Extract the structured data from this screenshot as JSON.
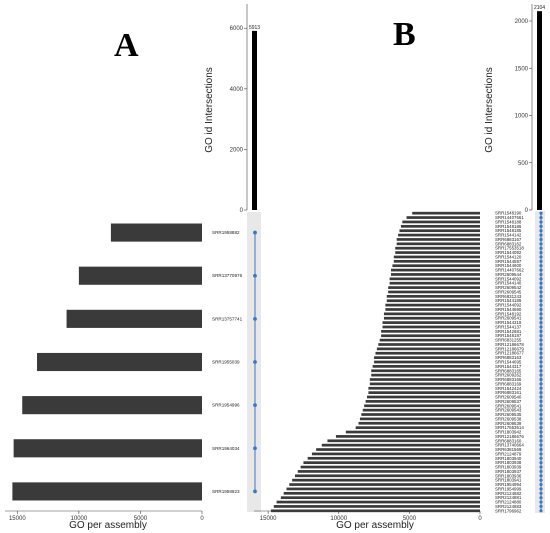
{
  "panels": [
    {
      "letter": "A",
      "ylabel": "GO id Intersections",
      "xlabel": "GO per assembly",
      "intersection_value": 5913,
      "chart_data": {
        "type": "bar",
        "top": {
          "values": [
            5913
          ],
          "ylim": [
            0,
            6800
          ],
          "yticks": [
            0,
            2000,
            4000,
            6000
          ]
        },
        "left": {
          "categories": [
            "SRR1958882",
            "SRR13770976",
            "SRR13757741",
            "SRR1955039",
            "SRR1954996",
            "SRR1964034",
            "SRR1958823"
          ],
          "values": [
            7400,
            10000,
            11000,
            13400,
            14600,
            15300,
            15400
          ],
          "xlim": [
            16000,
            0
          ],
          "xticks": [
            15000,
            10000,
            5000,
            0
          ]
        }
      }
    },
    {
      "letter": "B",
      "ylabel": "GO id Intersections",
      "xlabel": "GO per assembly",
      "intersection_value": 2104,
      "chart_data": {
        "type": "bar",
        "top": {
          "values": [
            2104
          ],
          "ylim": [
            0,
            2180
          ],
          "yticks": [
            0,
            500,
            1000,
            1500,
            2000
          ]
        },
        "left": {
          "categories": [
            "SRR1548190",
            "SRR14407661",
            "SRR1548188",
            "SRR1548186",
            "SRR1548185",
            "SRR1544142",
            "SRR6883167",
            "SRR6883162",
            "SRR17553518",
            "SRR1544092",
            "SRR1544120",
            "SRR1544597",
            "SRR1544600",
            "SRR14407662",
            "SRR2609544",
            "SRR1544092",
            "SRR1544140",
            "SRR2609542",
            "SRR2609545",
            "SRR6831243",
            "SRR1544189",
            "SRR1544092",
            "SRR1544690",
            "SRR1548192",
            "SRR2609541",
            "SRR1544319",
            "SRR1544137",
            "SRR1542681",
            "SRR1548187",
            "SRR6831255",
            "SRR12186678",
            "SRR12186679",
            "SRR12186677",
            "SRR6883163",
            "SRR1544695",
            "SRR1544317",
            "SRR6883165",
            "SRR2609262",
            "SRR6883166",
            "SRR6883169",
            "SRR1542424",
            "SRR6883161",
            "SRR2609540",
            "SRR2609537",
            "SRR2609541",
            "SRR2609543",
            "SRR2609535",
            "SRR2609538",
            "SRR2609539",
            "SRR17553514",
            "SRR1803942",
            "SRR12186676",
            "SRR6883160",
            "SRR13740664",
            "SRR6381569",
            "SRR2124879",
            "SRR1803940",
            "SRR1803938",
            "SRR1803939",
            "SRR1803937",
            "SRR1803936",
            "SRR1803941",
            "SRR1954994",
            "SRR1954999",
            "SRR2124882",
            "SRR2124881",
            "SRR2124880",
            "SRR2124883",
            "SRR1796962"
          ],
          "values": [
            4800,
            5200,
            5500,
            5600,
            5700,
            5800,
            5900,
            5900,
            6000,
            6000,
            6100,
            6100,
            6200,
            6300,
            6300,
            6400,
            6400,
            6500,
            6500,
            6600,
            6600,
            6700,
            6700,
            6800,
            6800,
            6900,
            6900,
            7000,
            7000,
            7100,
            7200,
            7300,
            7400,
            7500,
            7500,
            7600,
            7700,
            7700,
            7800,
            7800,
            7900,
            7900,
            8000,
            8100,
            8200,
            8300,
            8400,
            8500,
            8600,
            8800,
            9500,
            10200,
            10800,
            11200,
            11600,
            11900,
            12200,
            12500,
            12700,
            12900,
            13100,
            13300,
            13500,
            13700,
            13900,
            14100,
            14400,
            14600,
            14800
          ],
          "xlim": [
            16000,
            0
          ],
          "xticks": [
            15000,
            10000,
            5000,
            0
          ]
        }
      }
    }
  ],
  "colors": {
    "bar": "#3a3a3a",
    "top_bar": "#000000",
    "dot": "#3a78c2",
    "matrix_bg": "#e8e8e8"
  }
}
